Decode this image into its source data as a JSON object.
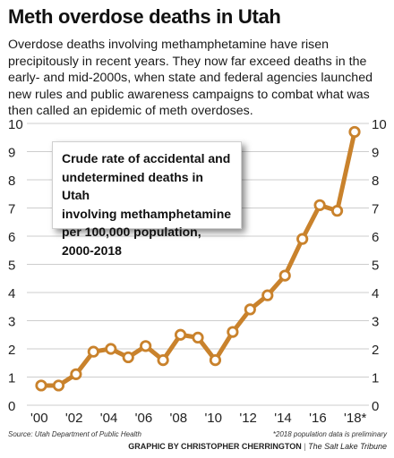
{
  "header": {
    "title": "Meth overdose deaths in Utah",
    "subtitle": "Overdose deaths involving methamphetamine have risen precipitously in recent years. They now far exceed deaths in the early- and mid-2000s, when state and federal agencies launched new rules and public awareness campaigns to combat what was then called an epidemic of meth overdoses."
  },
  "chart_data": {
    "type": "line",
    "title": "Crude rate of accidental and undetermined deaths in Utah involving methamphetamine per 100,000 population, 2000-2018",
    "x": [
      2000,
      2001,
      2002,
      2003,
      2004,
      2005,
      2006,
      2007,
      2008,
      2009,
      2010,
      2011,
      2012,
      2013,
      2014,
      2015,
      2016,
      2017,
      2018
    ],
    "values": [
      0.7,
      0.7,
      1.1,
      1.9,
      2.0,
      1.7,
      2.1,
      1.6,
      2.5,
      2.4,
      1.6,
      2.6,
      3.4,
      3.9,
      4.6,
      5.9,
      7.1,
      6.9,
      9.7
    ],
    "x_tick_labels": [
      "'00",
      "'02",
      "'04",
      "'06",
      "'08",
      "'10",
      "'12",
      "'14",
      "'16",
      "'18*"
    ],
    "y_ticks": [
      0,
      1,
      2,
      3,
      4,
      5,
      6,
      7,
      8,
      9,
      10
    ],
    "ylim": [
      0,
      10
    ],
    "xlim": [
      2000,
      2018
    ],
    "grid": "horizontal",
    "line_color": "#c9822c"
  },
  "callout_lines": [
    "Crude rate of accidental and",
    "undetermined deaths in Utah",
    "involving methamphetamine",
    "per 100,000 population,",
    "2000-2018"
  ],
  "footer": {
    "source": "Source: Utah Department of Public Health",
    "note": "*2018 population data is preliminary",
    "credit_by": "GRAPHIC BY CHRISTOPHER CHERRINGTON",
    "credit_sep": "|",
    "credit_pub": "The Salt Lake Tribune"
  }
}
